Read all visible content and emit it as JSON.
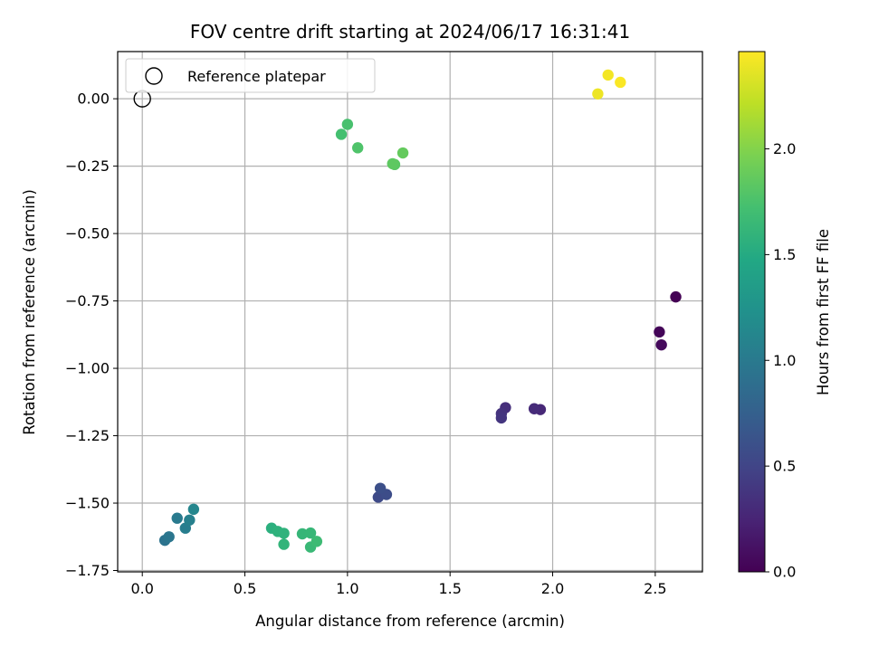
{
  "chart_data": {
    "type": "scatter",
    "title": "FOV centre drift starting at 2024/06/17 16:31:41",
    "xlabel": "Angular distance from reference (arcmin)",
    "ylabel": "Rotation from reference (arcmin)",
    "xlim": [
      -0.12,
      2.73
    ],
    "ylim": [
      -1.755,
      0.175
    ],
    "xticks": [
      0.0,
      0.5,
      1.0,
      1.5,
      2.0,
      2.5
    ],
    "xtick_labels": [
      "0.0",
      "0.5",
      "1.0",
      "1.5",
      "2.0",
      "2.5"
    ],
    "yticks": [
      0.0,
      -0.25,
      -0.5,
      -0.75,
      -1.0,
      -1.25,
      -1.5,
      -1.75
    ],
    "ytick_labels": [
      "0.00",
      "−0.25",
      "−0.50",
      "−0.75",
      "−1.00",
      "−1.25",
      "−1.50",
      "−1.75"
    ],
    "grid": true,
    "legend": {
      "placement": "top-left",
      "entries": [
        "Reference platepar"
      ]
    },
    "reference_point": {
      "x": 0.0,
      "y": 0.0,
      "label": "Reference platepar"
    },
    "colorbar": {
      "label": "Hours from first FF file",
      "range": [
        0.0,
        2.46
      ],
      "ticks": [
        0.0,
        0.5,
        1.0,
        1.5,
        2.0
      ],
      "tick_labels": [
        "0.0",
        "0.5",
        "1.0",
        "1.5",
        "2.0"
      ],
      "colormap": "viridis"
    },
    "points": [
      {
        "x": 2.6,
        "y": -0.735,
        "hours": 0.0
      },
      {
        "x": 2.52,
        "y": -0.865,
        "hours": 0.03
      },
      {
        "x": 2.53,
        "y": -0.913,
        "hours": 0.06
      },
      {
        "x": 1.94,
        "y": -1.153,
        "hours": 0.28
      },
      {
        "x": 1.91,
        "y": -1.15,
        "hours": 0.3
      },
      {
        "x": 1.77,
        "y": -1.146,
        "hours": 0.33
      },
      {
        "x": 1.75,
        "y": -1.168,
        "hours": 0.36
      },
      {
        "x": 1.75,
        "y": -1.184,
        "hours": 0.38
      },
      {
        "x": 1.15,
        "y": -1.478,
        "hours": 0.55
      },
      {
        "x": 1.19,
        "y": -1.468,
        "hours": 0.57
      },
      {
        "x": 1.16,
        "y": -1.445,
        "hours": 0.59
      },
      {
        "x": 0.11,
        "y": -1.638,
        "hours": 0.93
      },
      {
        "x": 0.13,
        "y": -1.625,
        "hours": 0.96
      },
      {
        "x": 0.17,
        "y": -1.556,
        "hours": 1.0
      },
      {
        "x": 0.21,
        "y": -1.593,
        "hours": 1.03
      },
      {
        "x": 0.23,
        "y": -1.563,
        "hours": 1.06
      },
      {
        "x": 0.25,
        "y": -1.523,
        "hours": 1.12
      },
      {
        "x": 0.63,
        "y": -1.593,
        "hours": 1.55
      },
      {
        "x": 0.66,
        "y": -1.605,
        "hours": 1.57
      },
      {
        "x": 0.69,
        "y": -1.612,
        "hours": 1.58
      },
      {
        "x": 0.69,
        "y": -1.653,
        "hours": 1.6
      },
      {
        "x": 0.78,
        "y": -1.614,
        "hours": 1.62
      },
      {
        "x": 0.82,
        "y": -1.611,
        "hours": 1.63
      },
      {
        "x": 0.82,
        "y": -1.663,
        "hours": 1.65
      },
      {
        "x": 0.85,
        "y": -1.642,
        "hours": 1.67
      },
      {
        "x": 0.97,
        "y": -0.132,
        "hours": 1.72
      },
      {
        "x": 1.0,
        "y": -0.095,
        "hours": 1.74
      },
      {
        "x": 1.05,
        "y": -0.182,
        "hours": 1.77
      },
      {
        "x": 1.23,
        "y": -0.244,
        "hours": 1.82
      },
      {
        "x": 1.22,
        "y": -0.241,
        "hours": 1.84
      },
      {
        "x": 1.27,
        "y": -0.201,
        "hours": 1.87
      },
      {
        "x": 2.22,
        "y": 0.018,
        "hours": 2.4
      },
      {
        "x": 2.27,
        "y": 0.088,
        "hours": 2.42
      },
      {
        "x": 2.33,
        "y": 0.061,
        "hours": 2.45
      }
    ]
  }
}
